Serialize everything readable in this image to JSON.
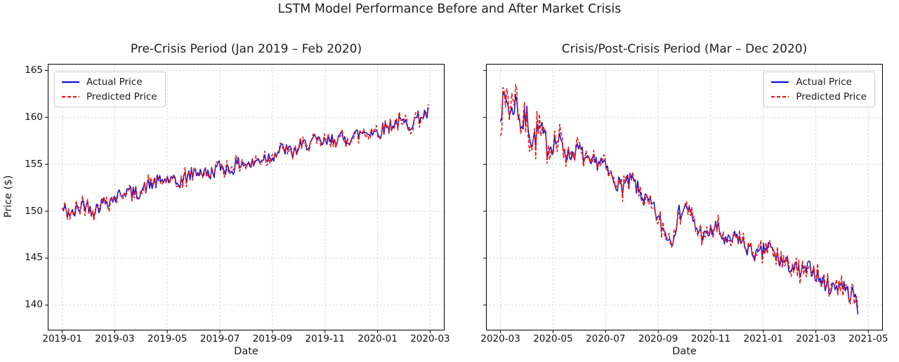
{
  "figure": {
    "title": "LSTM Model Performance Before and After Market Crisis",
    "background_color": "#ffffff",
    "grid_color": "#cdcdcd",
    "axis_color": "#000000"
  },
  "chart_data": [
    {
      "id": "pre-crisis",
      "type": "line",
      "title": "Pre-Crisis Period (Jan 2019 – Feb 2020)",
      "xlabel": "Date",
      "ylabel": "Price ($)",
      "x_tick_labels": [
        "2019-01",
        "2019-03",
        "2019-05",
        "2019-07",
        "2019-09",
        "2019-11",
        "2020-01",
        "2020-03"
      ],
      "y_ticks": [
        140,
        145,
        150,
        155,
        160,
        165
      ],
      "show_y_tick_labels": true,
      "ylim": [
        137.3,
        165.7
      ],
      "grid": true,
      "legend_position": "upper left",
      "n_points": 290,
      "t_end_months": 13.93,
      "seed": 42,
      "series": [
        {
          "name": "Actual Price",
          "color": "#1111d6",
          "style": "solid",
          "role": "actual"
        },
        {
          "name": "Predicted Price",
          "color": "#e41414",
          "style": "dashed",
          "role": "predicted"
        }
      ],
      "trend_monthly": [
        [
          0,
          150.2
        ],
        [
          0.4,
          149.6
        ],
        [
          0.8,
          150.9
        ],
        [
          1.2,
          150.1
        ],
        [
          1.6,
          151.0
        ],
        [
          2,
          151.4
        ],
        [
          2.4,
          152.2
        ],
        [
          2.8,
          151.8
        ],
        [
          3.2,
          152.6
        ],
        [
          3.6,
          153.1
        ],
        [
          4,
          153.4
        ],
        [
          4.4,
          152.9
        ],
        [
          4.8,
          153.8
        ],
        [
          5.2,
          154.3
        ],
        [
          5.6,
          153.9
        ],
        [
          6,
          154.8
        ],
        [
          6.4,
          154.4
        ],
        [
          6.8,
          155.2
        ],
        [
          7.2,
          154.9
        ],
        [
          7.6,
          155.7
        ],
        [
          8,
          155.9
        ],
        [
          8.4,
          156.7
        ],
        [
          8.8,
          156.2
        ],
        [
          9.2,
          157.1
        ],
        [
          9.6,
          157.5
        ],
        [
          10,
          157.2
        ],
        [
          10.4,
          157.9
        ],
        [
          10.8,
          157.6
        ],
        [
          11.2,
          158.2
        ],
        [
          11.6,
          158.5
        ],
        [
          12,
          158.4
        ],
        [
          12.4,
          159.1
        ],
        [
          12.8,
          159.5
        ],
        [
          13.2,
          159.2
        ],
        [
          13.6,
          160.1
        ],
        [
          13.93,
          160.4
        ]
      ],
      "noise_amp": [
        [
          0,
          0.75
        ],
        [
          14,
          0.75
        ]
      ],
      "pred_err_amp": [
        [
          0,
          0.55
        ],
        [
          14,
          0.55
        ]
      ],
      "value_start": 150.2,
      "value_end": 160.4
    },
    {
      "id": "crisis-post-crisis",
      "type": "line",
      "title": "Crisis/Post-Crisis Period (Mar – Dec 2020)",
      "xlabel": "Date",
      "ylabel": "Price ($)",
      "x_tick_labels": [
        "2020-03",
        "2020-05",
        "2020-07",
        "2020-09",
        "2020-11",
        "2021-01",
        "2021-03",
        "2021-05"
      ],
      "y_ticks": [
        140,
        145,
        150,
        155,
        160,
        165
      ],
      "show_y_tick_labels": false,
      "ylim": [
        137.3,
        165.7
      ],
      "grid": true,
      "legend_position": "upper right",
      "n_points": 285,
      "t_end_months": 13.6,
      "seed": 7,
      "series": [
        {
          "name": "Actual Price",
          "color": "#1111d6",
          "style": "solid",
          "role": "actual"
        },
        {
          "name": "Predicted Price",
          "color": "#e41414",
          "style": "dashed",
          "role": "predicted"
        }
      ],
      "trend_monthly": [
        [
          0,
          160.8
        ],
        [
          0.2,
          162.3
        ],
        [
          0.4,
          160.2
        ],
        [
          0.6,
          162.0
        ],
        [
          0.8,
          158.8
        ],
        [
          1,
          160.3
        ],
        [
          1.2,
          157.3
        ],
        [
          1.5,
          158.8
        ],
        [
          1.8,
          156.8
        ],
        [
          2.2,
          157.6
        ],
        [
          2.6,
          155.9
        ],
        [
          3,
          156.6
        ],
        [
          3.4,
          154.8
        ],
        [
          3.8,
          155.4
        ],
        [
          4.2,
          153.7
        ],
        [
          4.6,
          152.6
        ],
        [
          5,
          153.3
        ],
        [
          5.4,
          151.6
        ],
        [
          5.8,
          150.4
        ],
        [
          6.2,
          148.0
        ],
        [
          6.5,
          146.8
        ],
        [
          6.8,
          149.8
        ],
        [
          7.1,
          150.6
        ],
        [
          7.4,
          148.3
        ],
        [
          7.8,
          147.2
        ],
        [
          8.2,
          148.4
        ],
        [
          8.6,
          146.5
        ],
        [
          9,
          147.3
        ],
        [
          9.4,
          146.0
        ],
        [
          9.8,
          145.2
        ],
        [
          10.2,
          146.3
        ],
        [
          10.6,
          144.8
        ],
        [
          11,
          144.2
        ],
        [
          11.4,
          143.4
        ],
        [
          11.8,
          144.0
        ],
        [
          12.2,
          142.6
        ],
        [
          12.6,
          141.8
        ],
        [
          13,
          142.4
        ],
        [
          13.3,
          141.0
        ],
        [
          13.45,
          141.3
        ],
        [
          13.6,
          139.3
        ]
      ],
      "noise_amp": [
        [
          0,
          1.3
        ],
        [
          1.6,
          1.3
        ],
        [
          2.6,
          0.9
        ],
        [
          14,
          0.85
        ]
      ],
      "pred_err_amp": [
        [
          0,
          1.6
        ],
        [
          1.6,
          1.5
        ],
        [
          2.6,
          0.85
        ],
        [
          14,
          0.75
        ]
      ],
      "value_start": 160.8,
      "value_end": 139.3
    }
  ]
}
